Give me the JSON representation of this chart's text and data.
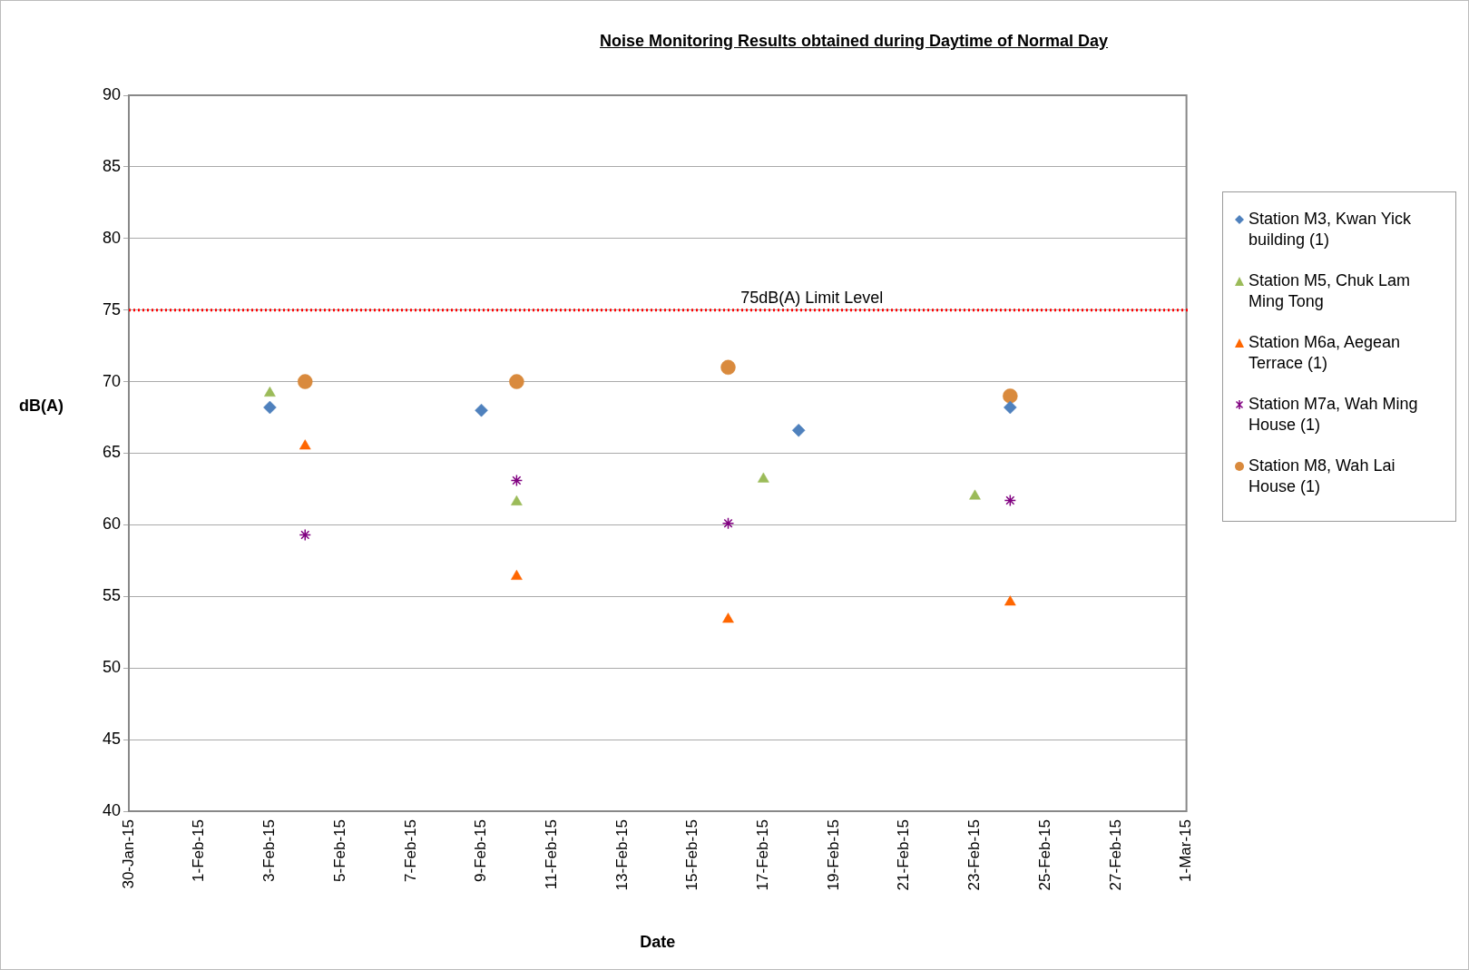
{
  "chart_data": {
    "type": "scatter",
    "title": "Noise Monitoring Results obtained during Daytime of Normal Day",
    "xlabel": "Date",
    "ylabel": "dB(A)",
    "xlim": [
      "--01-30",
      "--03-01"
    ],
    "xticks": [
      {
        "value": "--01-30",
        "label": "30-Jan-15"
      },
      {
        "value": "--02-01",
        "label": "1-Feb-15"
      },
      {
        "value": "--02-03",
        "label": "3-Feb-15"
      },
      {
        "value": "--02-05",
        "label": "5-Feb-15"
      },
      {
        "value": "--02-07",
        "label": "7-Feb-15"
      },
      {
        "value": "--02-09",
        "label": "9-Feb-15"
      },
      {
        "value": "--02-11",
        "label": "11-Feb-15"
      },
      {
        "value": "--02-13",
        "label": "13-Feb-15"
      },
      {
        "value": "--02-15",
        "label": "15-Feb-15"
      },
      {
        "value": "--02-17",
        "label": "17-Feb-15"
      },
      {
        "value": "--02-19",
        "label": "19-Feb-15"
      },
      {
        "value": "--02-21",
        "label": "21-Feb-15"
      },
      {
        "value": "--02-23",
        "label": "23-Feb-15"
      },
      {
        "value": "--02-25",
        "label": "25-Feb-15"
      },
      {
        "value": "--02-27",
        "label": "27-Feb-15"
      },
      {
        "value": "--03-01",
        "label": "1-Mar-15"
      }
    ],
    "ylim": [
      40,
      90
    ],
    "yticks": [
      40,
      45,
      50,
      55,
      60,
      65,
      70,
      75,
      80,
      85,
      90
    ],
    "grid": "y",
    "legend": "right",
    "ref_lines": [
      {
        "axis": "y",
        "value": 75,
        "label": "75dB(A) Limit Level",
        "color": "#ff0000",
        "line_style": "dotted"
      }
    ],
    "series": [
      {
        "name": "Station M3, Kwan Yick building (1)",
        "color": "#4f81bd",
        "marker": "diamond",
        "x": [
          "--02-03",
          "--02-09",
          "--02-18",
          "--02-24"
        ],
        "values": [
          68.2,
          68.0,
          66.6,
          68.2
        ]
      },
      {
        "name": "Station M5, Chuk Lam Ming Tong",
        "color": "#9bbb59",
        "marker": "triangle",
        "x": [
          "--02-03",
          "--02-10",
          "--02-17",
          "--02-23"
        ],
        "values": [
          69.2,
          61.6,
          63.2,
          62.0
        ]
      },
      {
        "name": "Station M6a, Aegean Terrace (1)",
        "color": "#ff6600",
        "marker": "triangle",
        "x": [
          "--02-04",
          "--02-10",
          "--02-16",
          "--02-24"
        ],
        "values": [
          65.5,
          56.4,
          53.4,
          54.6
        ]
      },
      {
        "name": "Station M7a, Wah Ming House (1)",
        "color": "#800080",
        "marker": "cross",
        "x": [
          "--02-04",
          "--02-10",
          "--02-16",
          "--02-24"
        ],
        "values": [
          59.3,
          63.1,
          60.1,
          61.7
        ]
      },
      {
        "name": "Station M8, Wah Lai House (1)",
        "color": "#d98a3d",
        "marker": "circle",
        "x": [
          "--02-04",
          "--02-10",
          "--02-16",
          "--02-24"
        ],
        "values": [
          70.0,
          70.0,
          71.0,
          69.0
        ]
      }
    ]
  }
}
